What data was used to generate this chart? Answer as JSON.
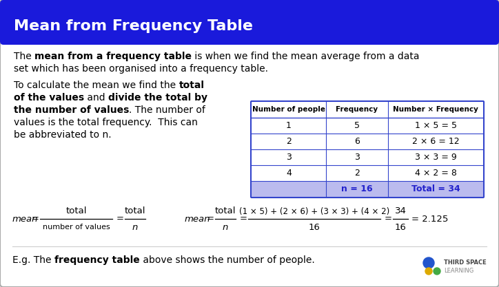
{
  "title": "Mean from Frequency Table",
  "title_bg": "#1a1adb",
  "title_color": "#ffffff",
  "body_bg": "#ffffff",
  "border_color": "#aaaaaa",
  "blue_accent": "#2222cc",
  "table_footer_bg": "#bbbbee",
  "table_border": "#3344cc",
  "table_header": [
    "Number of people",
    "Frequency",
    "Number × Frequency"
  ],
  "table_rows": [
    [
      "1",
      "5",
      "1 × 5 = 5"
    ],
    [
      "2",
      "6",
      "2 × 6 = 12"
    ],
    [
      "3",
      "3",
      "3 × 3 = 9"
    ],
    [
      "4",
      "2",
      "4 × 2 = 8"
    ]
  ],
  "table_footer": [
    "",
    "n = 16",
    "Total = 34"
  ],
  "logo_color_text": "#555555",
  "logo_blue": "#2255cc",
  "logo_yellow": "#ddaa00",
  "logo_green": "#44aa44"
}
